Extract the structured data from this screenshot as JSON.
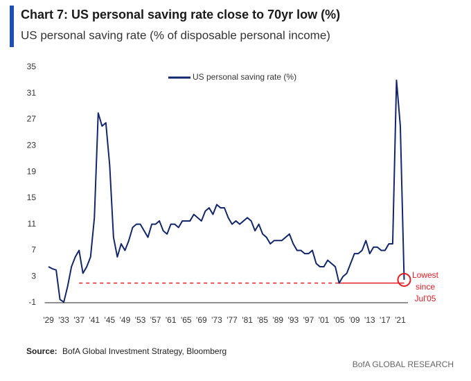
{
  "chart_data": {
    "type": "line",
    "title": "Chart 7: US personal saving rate close to 70yr low (%)",
    "subtitle": "US personal saving rate (% of disposable personal income)",
    "x": [
      1929,
      1930,
      1931,
      1932,
      1933,
      1934,
      1935,
      1936,
      1937,
      1938,
      1939,
      1940,
      1941,
      1942,
      1943,
      1944,
      1945,
      1946,
      1947,
      1948,
      1949,
      1950,
      1951,
      1952,
      1953,
      1954,
      1955,
      1956,
      1957,
      1958,
      1959,
      1960,
      1961,
      1962,
      1963,
      1964,
      1965,
      1966,
      1967,
      1968,
      1969,
      1970,
      1971,
      1972,
      1973,
      1974,
      1975,
      1976,
      1977,
      1978,
      1979,
      1980,
      1981,
      1982,
      1983,
      1984,
      1985,
      1986,
      1987,
      1988,
      1989,
      1990,
      1991,
      1992,
      1993,
      1994,
      1995,
      1996,
      1997,
      1998,
      1999,
      2000,
      2001,
      2002,
      2003,
      2004,
      2005,
      2006,
      2007,
      2008,
      2009,
      2010,
      2011,
      2012,
      2013,
      2014,
      2015,
      2016,
      2017,
      2018,
      2019,
      2020,
      2021,
      2022
    ],
    "series": [
      {
        "name": "US personal saving rate (%)",
        "color": "#13266b",
        "values": [
          4.5,
          4.2,
          4.0,
          -0.5,
          -0.9,
          1.5,
          4.5,
          6,
          7,
          3.5,
          4.5,
          6,
          12,
          28,
          26,
          26.5,
          20,
          9,
          6,
          8,
          7,
          8.5,
          10.5,
          11,
          11,
          10,
          9,
          11,
          11,
          11.5,
          10,
          9.5,
          11,
          11,
          10.5,
          11.5,
          11.5,
          11.5,
          12.5,
          12,
          11.5,
          13,
          13.5,
          12.5,
          14,
          13.5,
          13.5,
          12,
          11,
          11.5,
          11,
          11.5,
          12,
          11.5,
          10,
          11,
          9.5,
          9,
          8,
          8.5,
          8.5,
          8.5,
          9,
          9.5,
          8,
          7,
          7,
          6.5,
          6.5,
          7,
          5,
          4.5,
          4.5,
          5.5,
          5,
          4.5,
          2,
          3,
          3.5,
          5,
          6.5,
          6.5,
          7,
          8.5,
          6.5,
          7.5,
          7.5,
          7,
          7,
          8,
          8,
          33,
          26,
          2.5
        ]
      }
    ],
    "xlim": [
      1928,
      2023
    ],
    "xticks": [
      {
        "value": 1929,
        "label": "'29"
      },
      {
        "value": 1933,
        "label": "'33"
      },
      {
        "value": 1937,
        "label": "'37"
      },
      {
        "value": 1941,
        "label": "'41"
      },
      {
        "value": 1945,
        "label": "'45"
      },
      {
        "value": 1949,
        "label": "'49"
      },
      {
        "value": 1953,
        "label": "'53"
      },
      {
        "value": 1957,
        "label": "'57"
      },
      {
        "value": 1961,
        "label": "'61"
      },
      {
        "value": 1965,
        "label": "'65"
      },
      {
        "value": 1969,
        "label": "'69"
      },
      {
        "value": 1973,
        "label": "'73"
      },
      {
        "value": 1977,
        "label": "'77"
      },
      {
        "value": 1981,
        "label": "'81"
      },
      {
        "value": 1985,
        "label": "'85"
      },
      {
        "value": 1989,
        "label": "'89"
      },
      {
        "value": 1993,
        "label": "'93"
      },
      {
        "value": 1997,
        "label": "'97"
      },
      {
        "value": 2001,
        "label": "'01"
      },
      {
        "value": 2005,
        "label": "'05"
      },
      {
        "value": 2009,
        "label": "'09"
      },
      {
        "value": 2013,
        "label": "'13"
      },
      {
        "value": 2017,
        "label": "'17"
      },
      {
        "value": 2021,
        "label": "'21"
      }
    ],
    "ylim": [
      -1,
      35
    ],
    "yticks": [
      -1,
      3,
      7,
      11,
      15,
      19,
      23,
      27,
      31,
      35
    ],
    "reference_line": {
      "value": 2,
      "since": 2005,
      "color": "#e31b23"
    },
    "annotation": [
      "Lowest",
      "since",
      "Jul'05"
    ],
    "source": {
      "label": "Source:",
      "text": "BofA Global Investment Strategy, Bloomberg"
    },
    "footer": "BofA GLOBAL RESEARCH"
  }
}
